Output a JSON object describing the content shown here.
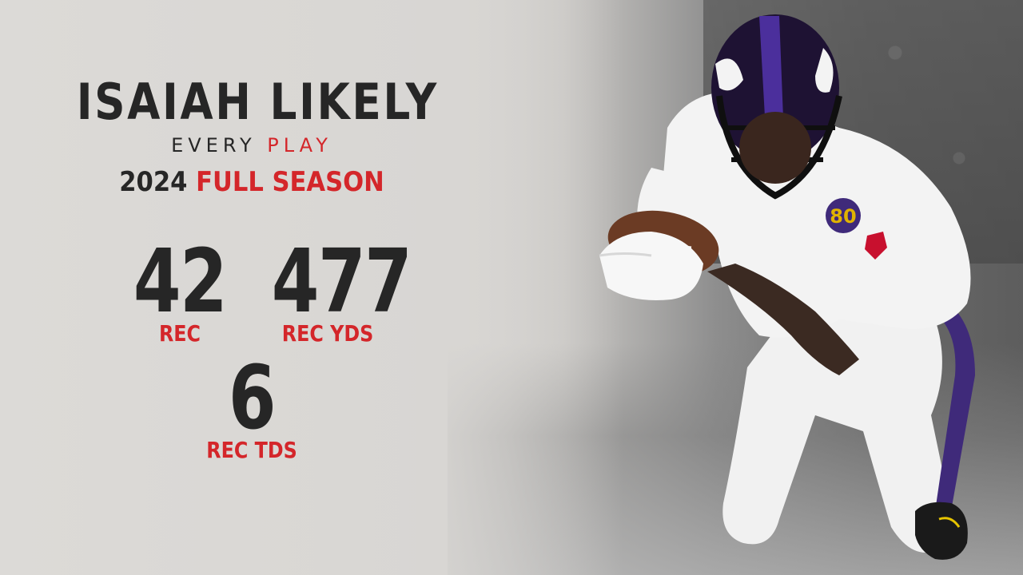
{
  "player": {
    "name": "ISAIAH LIKELY",
    "subtitle_part1": "EVERY ",
    "subtitle_part2": "PLAY",
    "season_year": "2024 ",
    "season_label": "FULL SEASON",
    "jersey_number": "80"
  },
  "stats": [
    {
      "value": "42",
      "label": "REC"
    },
    {
      "value": "477",
      "label": "REC YDS"
    },
    {
      "value": "6",
      "label": "REC TDS"
    }
  ],
  "colors": {
    "accent": "#d4262a",
    "text": "#262626",
    "background": "#d9d7d4",
    "team_purple": "#3f2a7a"
  }
}
